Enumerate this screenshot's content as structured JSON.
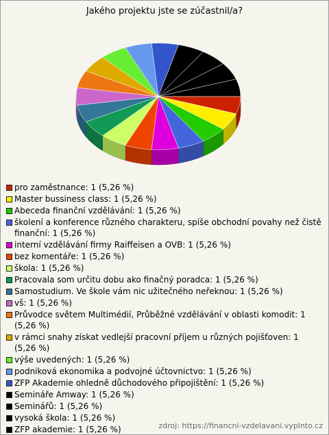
{
  "chart_data": {
    "type": "pie3d",
    "title": "Jakého projektu jste se zúčastnil/a?",
    "categories": [
      "pro zaměstnance:",
      "Master bussiness class:",
      "Abeceda finanční vzdělávání:",
      "školení a konference různého charakteru, spíše obchodní povahy než čistě finanční:",
      "interní vzdělávání firmy Raiffeisen a OVB:",
      "bez komentáře:",
      "škola:",
      "Pracovala som určitu dobu ako finačný poradca:",
      "Samostudium. Ve škole vám nic užitečného neřeknou:",
      "vš:",
      " Průvodce světem Multimédií, Průběžné vzdělávání v oblasti komodit:",
      "v rámci snahy získat vedlejší pracovní příjem u různých pojišťoven:",
      "výše uvedených:",
      "podniková ekonomika a podvojné účtovnictvo:",
      "ZFP Akademie ohledně důchodového připojištění:",
      "Semináře Amway:",
      "Seminářů:",
      "vysoká škola:",
      "ZFP akademie:"
    ],
    "values": [
      1,
      1,
      1,
      1,
      1,
      1,
      1,
      1,
      1,
      1,
      1,
      1,
      1,
      1,
      1,
      1,
      1,
      1,
      1
    ],
    "value_labels": [
      "1 (5,26 %)",
      "1 (5,26 %)",
      "1 (5,26 %)",
      "1 (5,26 %)",
      "1 (5,26 %)",
      "1 (5,26 %)",
      "1 (5,26 %)",
      "1 (5,26 %)",
      "1 (5,26 %)",
      "1 (5,26 %)",
      "1 (5,26 %)",
      "1 (5,26 %)",
      "1 (5,26 %)",
      "1 (5,26 %)",
      "1 (5,26 %)",
      "1 (5,26 %)",
      "1 (5,26 %)",
      "1 (5,26 %)",
      "1 (5,26 %)"
    ],
    "colors": [
      "#cc2200",
      "#ffee00",
      "#22cc00",
      "#4466dd",
      "#dd00dd",
      "#ee4400",
      "#ccff66",
      "#119955",
      "#337799",
      "#cc66cc",
      "#ee7711",
      "#ddaa00",
      "#66ee33",
      "#6699ee",
      "#3355cc",
      "#000000",
      "#000000",
      "#000000",
      "#000000"
    ],
    "source": "zdroj: https://financni-vzdelavani.vyplnto.cz"
  }
}
